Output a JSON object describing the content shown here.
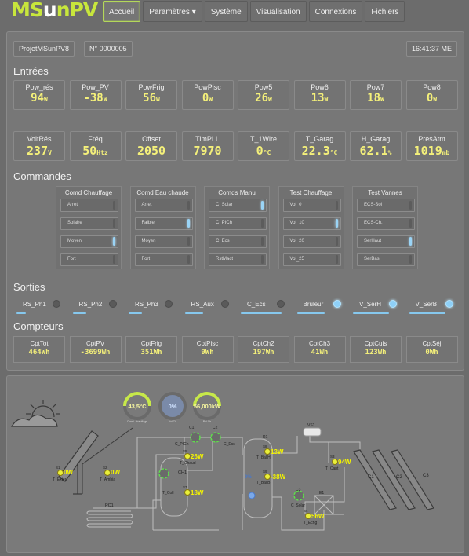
{
  "app": {
    "logo_m": "MS",
    "logo_u": "u",
    "logo_rest": "nPV"
  },
  "nav": [
    {
      "label": "Accueil"
    },
    {
      "label": "Paramètres ▾"
    },
    {
      "label": "Système"
    },
    {
      "label": "Visualisation"
    },
    {
      "label": "Connexions"
    },
    {
      "label": "Fichiers"
    }
  ],
  "header": {
    "project": "ProjetMSunPV8",
    "serial": "N° 0000005",
    "time": "16:41:37 ME"
  },
  "sections": {
    "inputs": "Entrées",
    "commands": "Commandes",
    "outputs": "Sorties",
    "counters": "Compteurs"
  },
  "inputs_row1": [
    {
      "label": "Pow_rés",
      "value": "94",
      "unit": "W"
    },
    {
      "label": "Pow_PV",
      "value": "-38",
      "unit": "W"
    },
    {
      "label": "PowFrig",
      "value": "56",
      "unit": "W"
    },
    {
      "label": "PowPisc",
      "value": "0",
      "unit": "W"
    },
    {
      "label": "Pow5",
      "value": "26",
      "unit": "W"
    },
    {
      "label": "Pow6",
      "value": "13",
      "unit": "W"
    },
    {
      "label": "Pow7",
      "value": "18",
      "unit": "W"
    },
    {
      "label": "Pow8",
      "value": "0",
      "unit": "W"
    }
  ],
  "inputs_row2": [
    {
      "label": "VoltRés",
      "value": "237",
      "unit": "V"
    },
    {
      "label": "Fréq",
      "value": "50",
      "unit": "Htz"
    },
    {
      "label": "Offset",
      "value": "2050",
      "unit": ""
    },
    {
      "label": "TimPLL",
      "value": "7970",
      "unit": ""
    },
    {
      "label": "T_1Wire",
      "value": "0",
      "unit": "°C"
    },
    {
      "label": "T_Garag",
      "value": "22.3",
      "unit": "°C"
    },
    {
      "label": "H_Garag",
      "value": "62.1",
      "unit": "%"
    },
    {
      "label": "PresAtm",
      "value": "1019",
      "unit": "mb"
    }
  ],
  "commands": [
    {
      "title": "Comd Chauffage",
      "buttons": [
        {
          "label": "Arret"
        },
        {
          "label": "Solaire"
        },
        {
          "label": "Moyen"
        },
        {
          "label": "Fort"
        }
      ],
      "active": 2
    },
    {
      "title": "Comd Eau chaude",
      "buttons": [
        {
          "label": "Arret"
        },
        {
          "label": "Faible"
        },
        {
          "label": "Moyen"
        },
        {
          "label": "Fort"
        }
      ],
      "active": 1
    },
    {
      "title": "Comds Manu",
      "buttons": [
        {
          "label": "C_Solar"
        },
        {
          "label": "C_PICh"
        },
        {
          "label": "C_Ecs"
        },
        {
          "label": "RstMact"
        }
      ],
      "active": 0
    },
    {
      "title": "Test Chauffage",
      "buttons": [
        {
          "label": "Vol_0"
        },
        {
          "label": "Vol_10"
        },
        {
          "label": "Vol_20"
        },
        {
          "label": "Vol_25"
        }
      ],
      "active": 1
    },
    {
      "title": "Test Vannes",
      "buttons": [
        {
          "label": "ECS-Sol"
        },
        {
          "label": "ECS-Ch."
        },
        {
          "label": "SerHaut"
        },
        {
          "label": "SerBas"
        }
      ],
      "active": 2
    }
  ],
  "outputs": [
    {
      "label": "RS_Ph1",
      "on": false,
      "level": 0.2
    },
    {
      "label": "RS_Ph2",
      "on": false,
      "level": 0.3
    },
    {
      "label": "RS_Ph3",
      "on": false,
      "level": 0.3
    },
    {
      "label": "RS_Aux",
      "on": false,
      "level": 0.4
    },
    {
      "label": "C_Ecs",
      "on": false,
      "level": 0.9
    },
    {
      "label": "Bruleur",
      "on": true,
      "level": 0.6
    },
    {
      "label": "V_SerH",
      "on": true,
      "level": 0.8
    },
    {
      "label": "V_SerB",
      "on": true,
      "level": 0.8
    }
  ],
  "counters": [
    {
      "label": "CptTot",
      "value": "464Wh"
    },
    {
      "label": "CptPV",
      "value": "-3699Wh"
    },
    {
      "label": "CptFrig",
      "value": "351Wh"
    },
    {
      "label": "CptPisc",
      "value": "9Wh"
    },
    {
      "label": "CptCh2",
      "value": "197Wh"
    },
    {
      "label": "CptCh3",
      "value": "41Wh"
    },
    {
      "label": "CptCuis",
      "value": "123Wh"
    },
    {
      "label": "CptSéj",
      "value": "0Wh"
    }
  ],
  "diagram": {
    "gauges": [
      {
        "value": "43,5°C",
        "caption": "Consi. chauffage",
        "level": 0.8
      },
      {
        "value": "0%",
        "caption": "Vol.Ch",
        "level": 0.0
      },
      {
        "value": "56,000kW",
        "caption": "Pui.Ch",
        "level": 0.7
      }
    ],
    "labels": {
      "s1": "S1",
      "t_exter": "T_Exter",
      "t_exter_val": "0W",
      "s2": "S2",
      "t_ambia": "T_Ambia",
      "t_ambia_val": "0W",
      "pc1": "PC1",
      "c1": "C1",
      "c_pich": "C_PICh",
      "c2": "C2",
      "c_ecs": "C_Ecs",
      "s5": "S5",
      "t_chaud": "T_Chaud",
      "t_chaud_val": "26W",
      "ch1": "CH1",
      "s7": "S7",
      "t_coll": "T_Coll",
      "t_coll_val": "18W",
      "r1": "R1",
      "s8": "S8",
      "t_ballh": "T_BallH",
      "t_ballh_val": "13W",
      "s9": "S9",
      "t_ballb": "T_BallB",
      "t_ballb_val": "-38W",
      "pct": "0%",
      "vs1": "VS1",
      "s3": "S3",
      "t_capt": "T_Capt",
      "t_capt_val": "94W",
      "c3": "C3",
      "c_solar": "C_Solar",
      "e1": "E1",
      "s4": "S4",
      "t_echg": "T_Echg",
      "t_echg_val": "56W",
      "cap1": "C1",
      "cap2": "C2",
      "cap3": "C3"
    }
  },
  "colors": {
    "accent": "#c8e63c",
    "value": "#f4f07a",
    "led_on": "#8ed0f8",
    "sensor": "#e9ef3a"
  }
}
